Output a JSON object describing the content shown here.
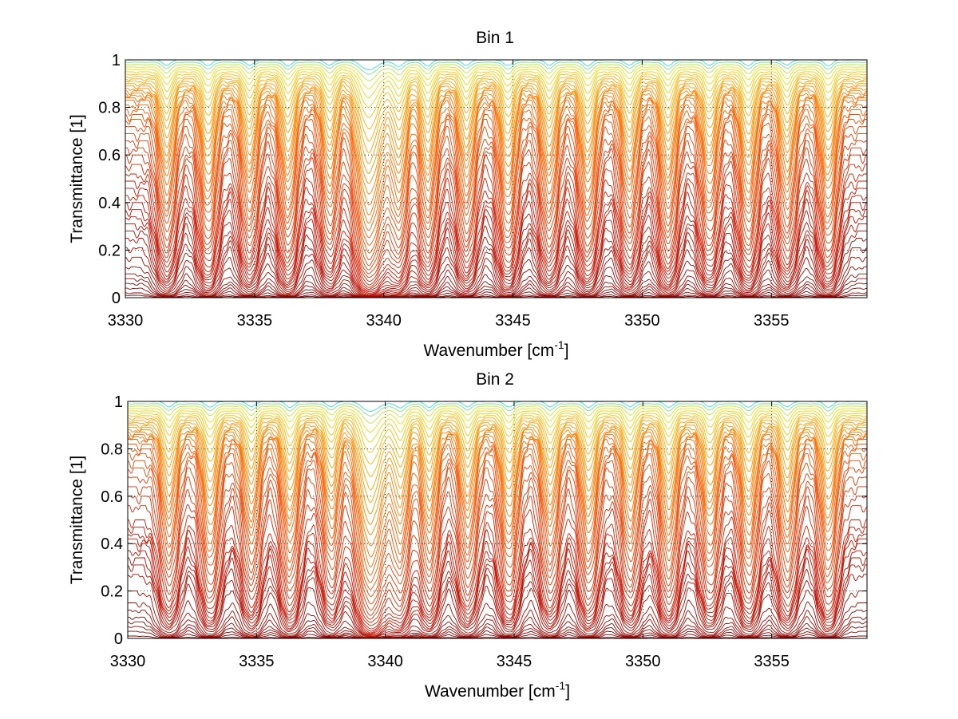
{
  "chart_data": [
    {
      "type": "line",
      "title": "Bin 1",
      "xlabel": "Wavenumber",
      "xlabel_unit_base": "cm",
      "xlabel_unit_exp": "-1",
      "ylabel": "Transmittance [1]",
      "xlim": [
        3330,
        3358.7
      ],
      "ylim": [
        0,
        1
      ],
      "xticks": [
        3330,
        3335,
        3340,
        3345,
        3350,
        3355
      ],
      "yticks": [
        0,
        0.2,
        0.4,
        0.6,
        0.8,
        1
      ],
      "grid": true,
      "legend": "none",
      "colormap": "jet (many spectra; bottom curves dark red, top curves orange/yellow/cyan)",
      "series_count_approx": 60,
      "absorption_line_centers": [
        3331.6,
        3333.2,
        3334.8,
        3336.3,
        3337.9,
        3339.4,
        3340.6,
        3341.7,
        3343.2,
        3344.8,
        3346.4,
        3347.9,
        3349.5,
        3351.0,
        3352.6,
        3354.1,
        3355.6,
        3357.2
      ],
      "continuum_levels": [
        1.0,
        0.99,
        0.98,
        0.97,
        0.96,
        0.95,
        0.94,
        0.93,
        0.92,
        0.91,
        0.9,
        0.89,
        0.88,
        0.87,
        0.86,
        0.85,
        0.84,
        0.83,
        0.81,
        0.79,
        0.77,
        0.75,
        0.72,
        0.69,
        0.66,
        0.63,
        0.6,
        0.56,
        0.52,
        0.49,
        0.46,
        0.43,
        0.4,
        0.37,
        0.34,
        0.31,
        0.28,
        0.25,
        0.21,
        0.17,
        0.13,
        0.1,
        0.08,
        0.06,
        0.04,
        0.02,
        0.01
      ]
    },
    {
      "type": "line",
      "title": "Bin 2",
      "xlabel": "Wavenumber",
      "xlabel_unit_base": "cm",
      "xlabel_unit_exp": "-1",
      "ylabel": "Transmittance [1]",
      "xlim": [
        3330,
        3358.7
      ],
      "ylim": [
        0,
        1
      ],
      "xticks": [
        3330,
        3335,
        3340,
        3345,
        3350,
        3355
      ],
      "yticks": [
        0,
        0.2,
        0.4,
        0.6,
        0.8,
        1
      ],
      "grid": true,
      "legend": "none",
      "colormap": "jet (many spectra; bottom curves dark red, top curves orange/yellow/cyan)",
      "series_count_approx": 60,
      "absorption_line_centers": [
        3331.6,
        3333.2,
        3334.8,
        3336.3,
        3337.9,
        3339.4,
        3340.6,
        3341.7,
        3343.2,
        3344.8,
        3346.4,
        3347.9,
        3349.5,
        3351.0,
        3352.6,
        3354.1,
        3355.6,
        3357.2
      ],
      "continuum_levels": [
        1.0,
        0.99,
        0.98,
        0.97,
        0.96,
        0.95,
        0.94,
        0.93,
        0.92,
        0.91,
        0.9,
        0.89,
        0.88,
        0.87,
        0.86,
        0.85,
        0.84,
        0.82,
        0.8,
        0.78,
        0.75,
        0.72,
        0.68,
        0.64,
        0.6,
        0.56,
        0.5,
        0.47,
        0.44,
        0.42,
        0.4,
        0.37,
        0.34,
        0.31,
        0.27,
        0.2,
        0.15,
        0.12,
        0.09,
        0.07,
        0.05,
        0.03,
        0.01
      ]
    }
  ]
}
